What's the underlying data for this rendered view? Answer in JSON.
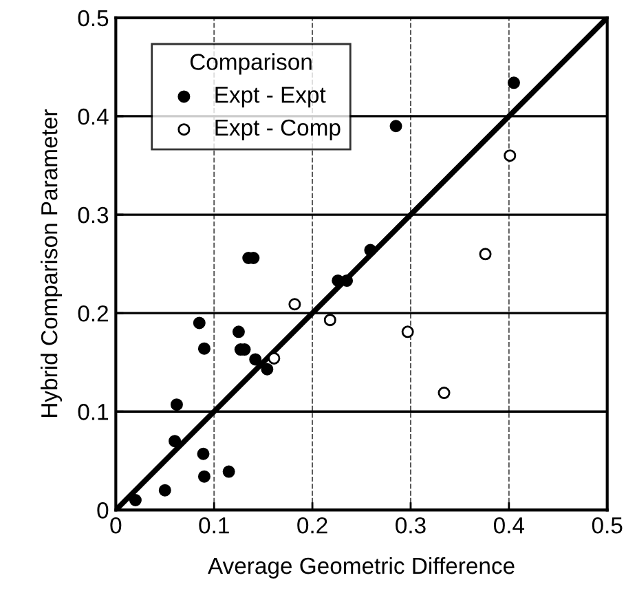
{
  "chart_data": {
    "type": "scatter",
    "xlabel": "Average Geometric Difference",
    "ylabel": "Hybrid Comparison Parameter",
    "legend_title": "Comparison",
    "xlim": [
      0,
      0.5
    ],
    "ylim": [
      0,
      0.5
    ],
    "xticks": [
      0,
      0.1,
      0.2,
      0.3,
      0.4,
      0.5
    ],
    "yticks": [
      0,
      0.1,
      0.2,
      0.3,
      0.4,
      0.5
    ],
    "grid": true,
    "legend": "top left",
    "series": [
      {
        "name": "Expt - Expt",
        "color": "#000000",
        "marker": "circle",
        "x": [
          0.02,
          0.05,
          0.06,
          0.062,
          0.089,
          0.09,
          0.115,
          0.085,
          0.09,
          0.125,
          0.127,
          0.131,
          0.135,
          0.14,
          0.142,
          0.154,
          0.226,
          0.235,
          0.259,
          0.285,
          0.405
        ],
        "values": [
          0.01,
          0.02,
          0.07,
          0.107,
          0.057,
          0.034,
          0.039,
          0.19,
          0.164,
          0.181,
          0.163,
          0.163,
          0.256,
          0.256,
          0.153,
          0.143,
          0.233,
          0.233,
          0.264,
          0.39,
          0.434
        ]
      },
      {
        "name": "Expt - Comp",
        "color": "#ffffff",
        "marker": "circle",
        "x": [
          0.182,
          0.161,
          0.218,
          0.297,
          0.334,
          0.376,
          0.401
        ],
        "values": [
          0.209,
          0.154,
          0.193,
          0.181,
          0.119,
          0.26,
          0.36
        ]
      },
      {
        "type": "line",
        "color": "#000000",
        "x": [
          0,
          0.5
        ],
        "values": [
          0,
          0.5
        ]
      }
    ]
  }
}
